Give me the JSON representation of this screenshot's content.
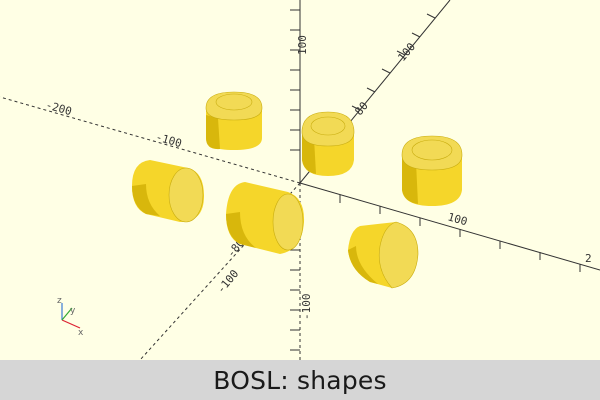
{
  "caption": "BOSL: shapes",
  "axes": {
    "tick_labels": {
      "x_positive": [
        "100",
        "2"
      ],
      "x_negative": [
        "-100",
        "-200"
      ],
      "y_positive": [
        "80",
        "100"
      ],
      "y_negative": [
        "-80",
        "-100"
      ],
      "z_positive": [
        "100"
      ],
      "z_negative": [
        "-100"
      ]
    },
    "orientation_gizmo": {
      "x": "x",
      "y": "y",
      "z": "z"
    }
  },
  "shapes": [
    "cylinder",
    "cylinder",
    "cylinder",
    "rounded-cylinder",
    "rounded-cylinder",
    "chamfered-cylinder"
  ],
  "colors": {
    "background": "#ffffe5",
    "shape": "#f5d62a",
    "caption_bar": "#d6d6d6"
  }
}
